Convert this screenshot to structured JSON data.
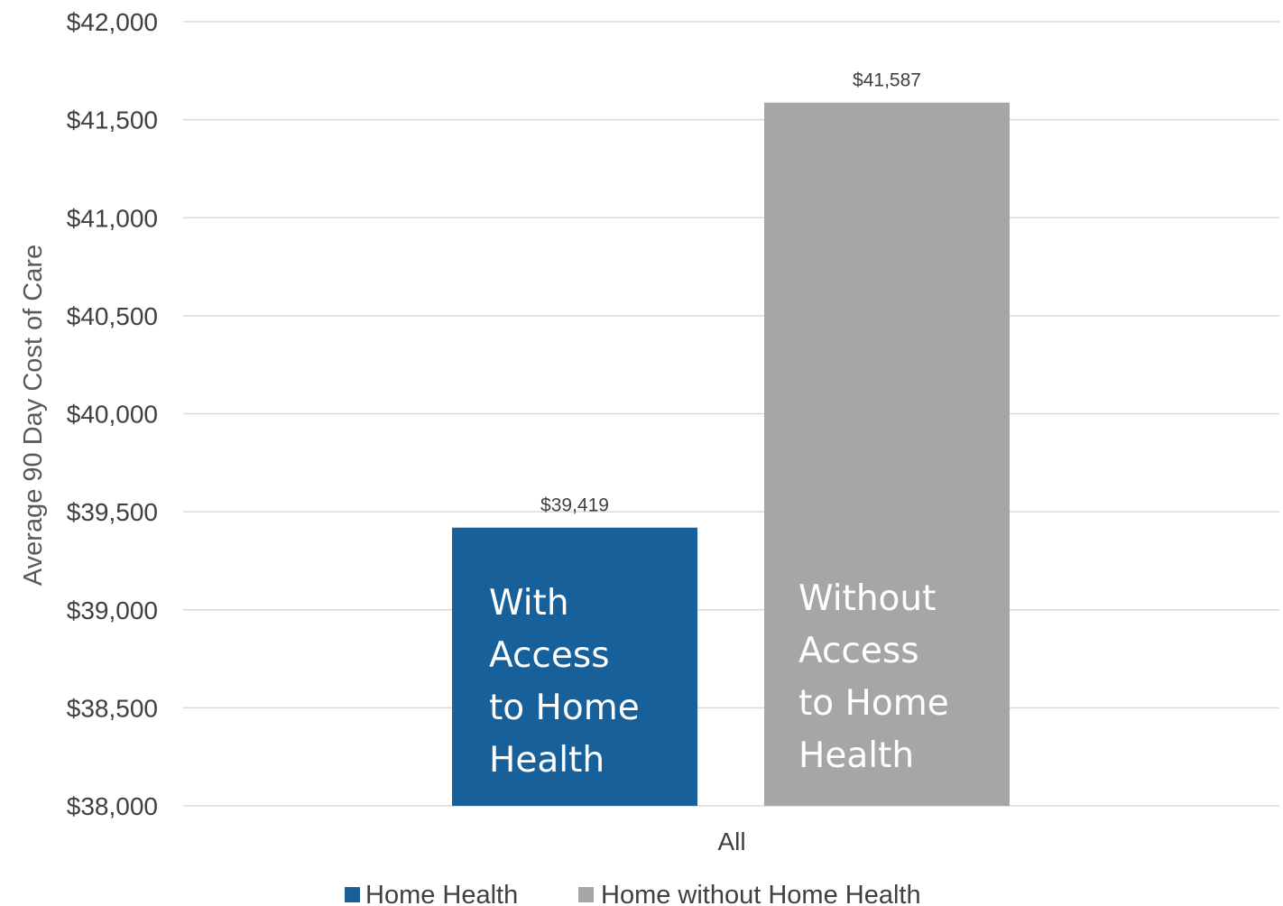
{
  "chart_data": {
    "type": "bar",
    "categories": [
      "All"
    ],
    "series": [
      {
        "name": "Home Health",
        "values": [
          39419
        ],
        "color": "#17609a",
        "value_label": "$39,419",
        "annotation": [
          "With",
          "Access",
          "to Home",
          "Health"
        ]
      },
      {
        "name": "Home without Home Health",
        "values": [
          41587
        ],
        "color": "#a6a6a6",
        "value_label": "$41,587",
        "annotation": [
          "Without",
          "Access",
          "to Home",
          "Health"
        ]
      }
    ],
    "ylabel": "Average 90 Day Cost of Care",
    "xlabel": "",
    "ylim": [
      38000,
      42000
    ],
    "yticks": [
      38000,
      38500,
      39000,
      39500,
      40000,
      40500,
      41000,
      41500,
      42000
    ],
    "ytick_labels": [
      "$38,000",
      "$38,500",
      "$39,000",
      "$39,500",
      "$40,000",
      "$40,500",
      "$41,000",
      "$41,500",
      "$42,000"
    ],
    "grid": true,
    "legend_position": "bottom"
  }
}
